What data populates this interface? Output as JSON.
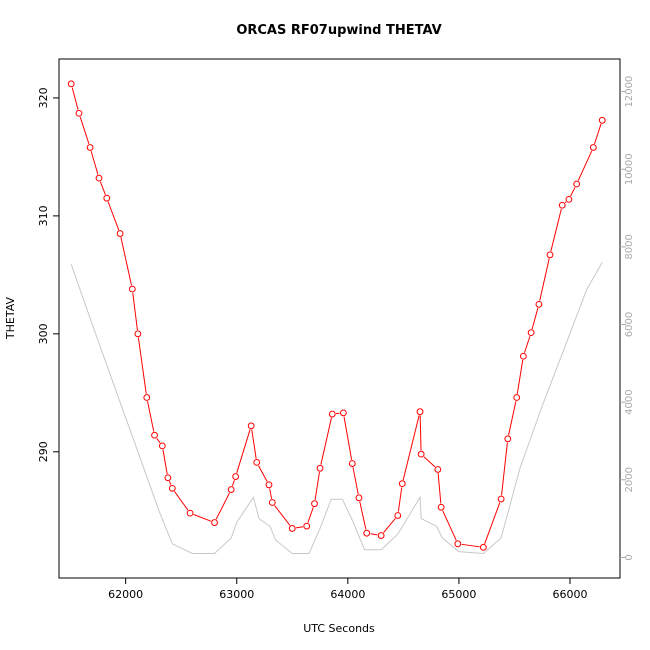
{
  "chart_data": {
    "type": "line",
    "title": "ORCAS RF07upwind THETAV",
    "xlabel": "UTC Seconds",
    "ylabel": "THETAV",
    "xlim": [
      61400,
      66450
    ],
    "ylim": [
      279.3,
      323.3
    ],
    "y2lim": [
      -530,
      12840
    ],
    "x_ticks": [
      "62000",
      "63000",
      "64000",
      "65000",
      "66000"
    ],
    "y_ticks": [
      "290",
      "300",
      "310",
      "320"
    ],
    "y2_ticks": [
      "0",
      "2000",
      "4000",
      "6000",
      "8000",
      "10000",
      "12000"
    ],
    "grid": false,
    "series": [
      {
        "axis": "left",
        "color": "#ff0000",
        "style": "line-with-open-circles",
        "x": [
          61510,
          61580,
          61680,
          61760,
          61830,
          61950,
          62060,
          62110,
          62190,
          62260,
          62330,
          62380,
          62420,
          62580,
          62800,
          62950,
          62990,
          63130,
          63180,
          63290,
          63320,
          63500,
          63630,
          63700,
          63750,
          63860,
          63960,
          64040,
          64100,
          64170,
          64300,
          64450,
          64490,
          64650,
          64660,
          64810,
          64840,
          64990,
          65220,
          65380,
          65440,
          65520,
          65580,
          65650,
          65720,
          65820,
          65930,
          65990,
          66060,
          66210,
          66290
        ],
        "values": [
          321.2,
          318.7,
          315.8,
          313.2,
          311.5,
          308.5,
          303.8,
          300.0,
          294.6,
          291.4,
          290.5,
          287.8,
          286.9,
          284.8,
          284.0,
          286.8,
          287.9,
          292.2,
          289.1,
          287.2,
          285.7,
          283.5,
          283.7,
          285.6,
          288.6,
          293.2,
          293.3,
          289.0,
          286.1,
          283.1,
          282.9,
          284.6,
          287.3,
          293.4,
          289.8,
          288.5,
          285.3,
          282.2,
          281.9,
          286.0,
          291.1,
          294.6,
          298.1,
          300.1,
          302.5,
          306.7,
          310.9,
          311.4,
          312.7,
          315.8,
          318.1
        ]
      },
      {
        "axis": "right",
        "color": "#c8c8c8",
        "style": "line",
        "x": [
          61510,
          61700,
          61900,
          62100,
          62300,
          62420,
          62600,
          62800,
          62950,
          63000,
          63150,
          63200,
          63300,
          63350,
          63500,
          63650,
          63750,
          63850,
          63950,
          64050,
          64150,
          64300,
          64450,
          64650,
          64660,
          64800,
          64850,
          65000,
          65220,
          65380,
          65550,
          65750,
          65950,
          66150,
          66290
        ],
        "values": [
          7550,
          6000,
          4400,
          2800,
          1200,
          350,
          100,
          100,
          500,
          900,
          1550,
          1000,
          800,
          450,
          100,
          100,
          750,
          1500,
          1500,
          900,
          200,
          200,
          600,
          1550,
          1000,
          800,
          500,
          150,
          100,
          500,
          2300,
          3900,
          5400,
          6900,
          7600
        ]
      }
    ]
  }
}
